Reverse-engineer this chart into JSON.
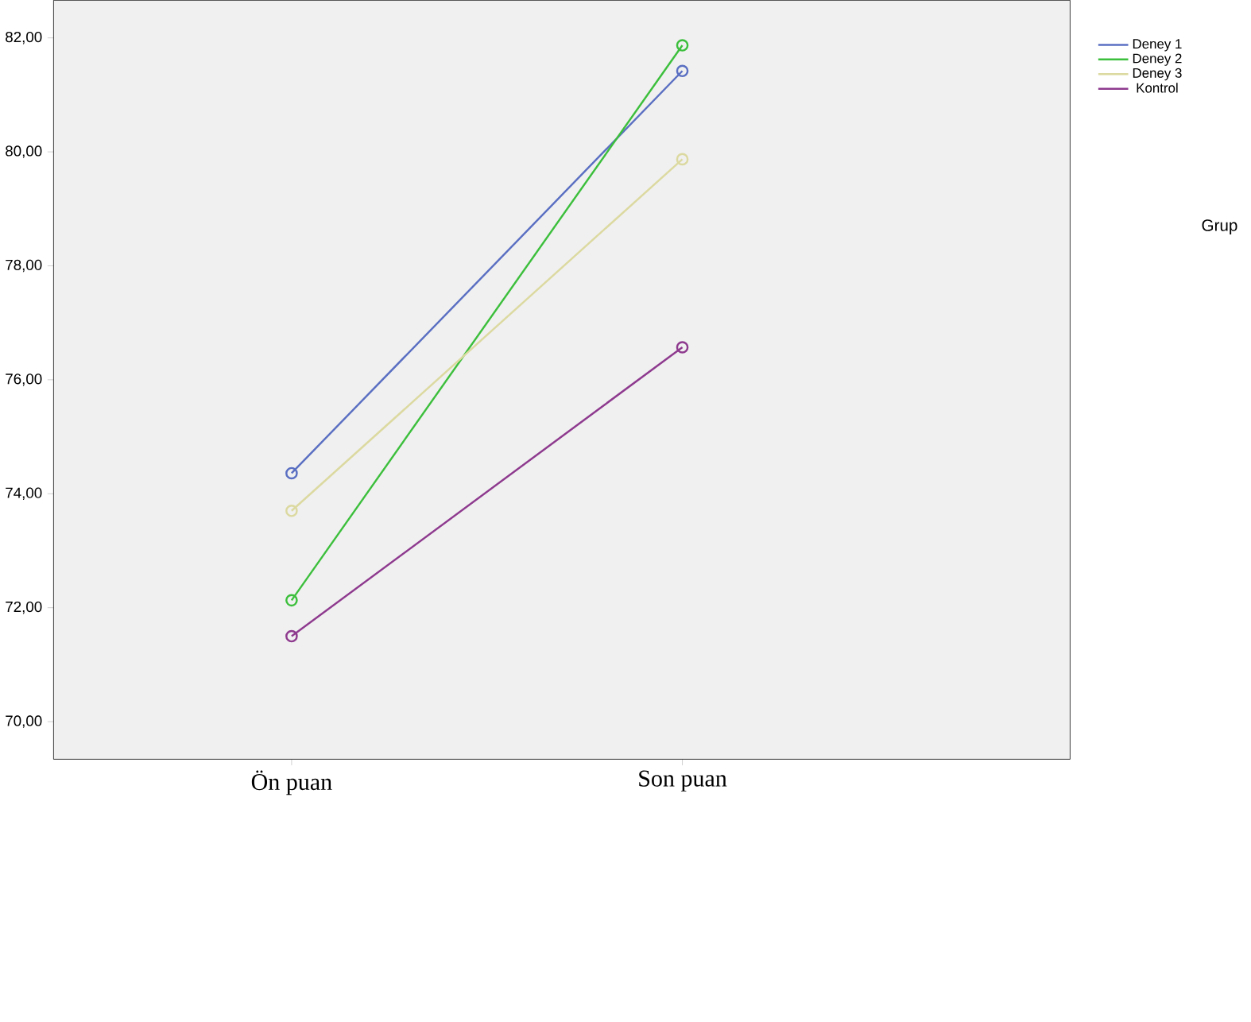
{
  "chart_data": {
    "type": "line",
    "categories": [
      "Ön puan",
      "Son puan"
    ],
    "legend_title": "Grup",
    "legend": "right",
    "marker": "circle",
    "line_style": "solid",
    "grid": false,
    "ylim": [
      69.34,
      82.66
    ],
    "yticks": [
      {
        "value": 70,
        "label": "70,00"
      },
      {
        "value": 72,
        "label": "72,00"
      },
      {
        "value": 74,
        "label": "74,00"
      },
      {
        "value": 76,
        "label": "76,00"
      },
      {
        "value": 78,
        "label": "78,00"
      },
      {
        "value": 80,
        "label": "80,00"
      },
      {
        "value": 82,
        "label": "82,00"
      }
    ],
    "series": [
      {
        "name": "Deney 1",
        "color": "#5a6fc2",
        "values": [
          74.36,
          81.42
        ]
      },
      {
        "name": "Deney 2",
        "color": "#3cbf3c",
        "values": [
          72.13,
          81.87
        ]
      },
      {
        "name": "Deney 3",
        "color": "#dcd9a0",
        "values": [
          73.7,
          79.87
        ]
      },
      {
        "name": "Kontrol",
        "color": "#8e3a8e",
        "values": [
          71.5,
          76.57
        ]
      }
    ]
  }
}
